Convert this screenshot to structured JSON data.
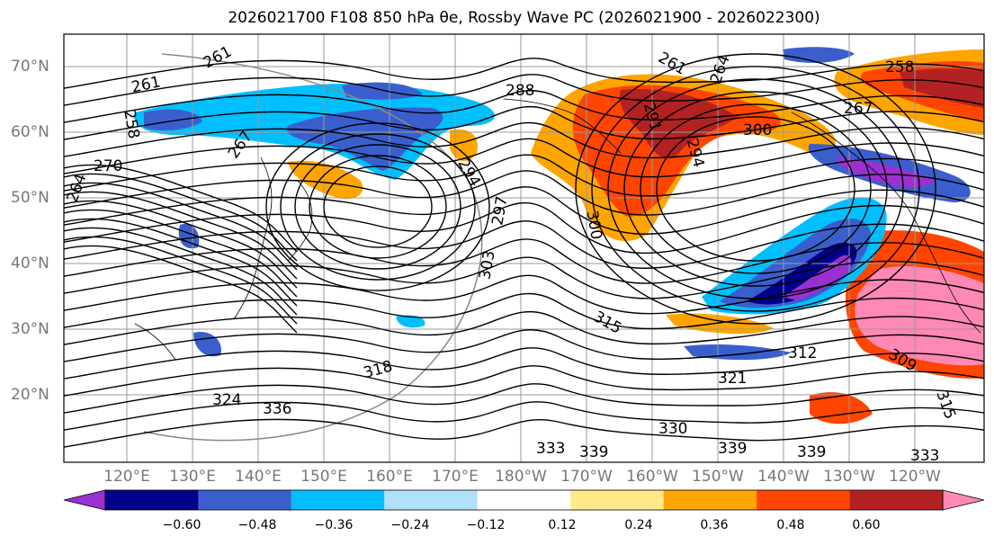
{
  "title": "2026021700 F108 850 hPa θe, Rossby Wave PC (2026021900 - 2026022300)",
  "lat_labels": [
    "70°N",
    "60°N",
    "50°N",
    "40°N",
    "30°N",
    "20°N"
  ],
  "lon_labels": [
    "120°E",
    "130°E",
    "140°E",
    "150°E",
    "160°E",
    "170°E",
    "180°W",
    "170°W",
    "160°W",
    "150°W",
    "140°W",
    "130°W",
    "120°W"
  ],
  "contour_labels": [
    "261",
    "261",
    "258",
    "267",
    "270",
    "264",
    "294",
    "297",
    "303",
    "300",
    "288",
    "261",
    "264",
    "258",
    "267",
    "291",
    "294",
    "300",
    "315",
    "309",
    "312",
    "321",
    "324",
    "336",
    "339",
    "339",
    "330",
    "333",
    "339",
    "333",
    "315",
    "318"
  ],
  "colorbar": {
    "tick_labels": [
      "−0.60",
      "−0.48",
      "−0.36",
      "−0.24",
      "−0.12",
      "0.12",
      "0.24",
      "0.36",
      "0.48",
      "0.60"
    ],
    "colors": [
      "#9b30d0",
      "#00008b",
      "#3a5fcd",
      "#00bfff",
      "#b0e0fa",
      "#ffffff",
      "#ffe98a",
      "#ffa500",
      "#ff4500",
      "#b22222",
      "#ff88b4"
    ]
  }
}
